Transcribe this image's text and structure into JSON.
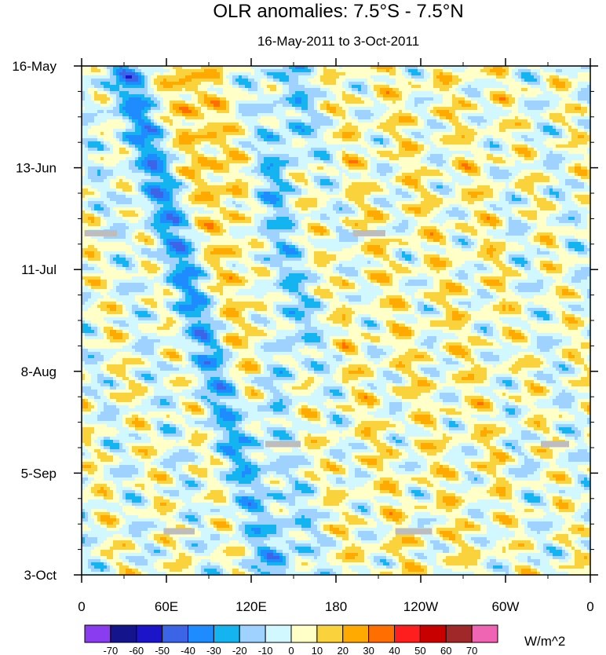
{
  "chart_data": {
    "type": "heatmap",
    "title": "OLR anomalies: 7.5°S - 7.5°N",
    "subtitle": "16-May-2011 to 3-Oct-2011",
    "xlabel": "",
    "ylabel": "",
    "x_range_deg_east": [
      0,
      360
    ],
    "x_ticks": [
      {
        "label": "0",
        "lon": 0
      },
      {
        "label": "60E",
        "lon": 60
      },
      {
        "label": "120E",
        "lon": 120
      },
      {
        "label": "180",
        "lon": 180
      },
      {
        "label": "120W",
        "lon": 240
      },
      {
        "label": "60W",
        "lon": 300
      },
      {
        "label": "0",
        "lon": 360
      }
    ],
    "time_range_days": [
      0,
      140
    ],
    "y_ticks": [
      {
        "label": "16-May",
        "day": 0
      },
      {
        "label": "13-Jun",
        "day": 28
      },
      {
        "label": "11-Jul",
        "day": 56
      },
      {
        "label": "8-Aug",
        "day": 84
      },
      {
        "label": "5-Sep",
        "day": 112
      },
      {
        "label": "3-Oct",
        "day": 140
      }
    ],
    "colorbar": {
      "units": "W/m^2",
      "levels": [
        -70,
        -60,
        -50,
        -40,
        -30,
        -20,
        -10,
        0,
        10,
        20,
        30,
        40,
        50,
        60,
        70
      ],
      "colors": [
        "#8a3cf0",
        "#14148c",
        "#1c14c8",
        "#3c64e6",
        "#1e8cff",
        "#14b4f0",
        "#a0d2ff",
        "#d2f8ff",
        "#ffffc8",
        "#fad23c",
        "#ffaa00",
        "#ff6e00",
        "#ff1e1e",
        "#c80000",
        "#a02828",
        "#f064b4"
      ]
    },
    "features": [
      {
        "name": "eastward-propagating convective (negative) band",
        "lon_start": 20,
        "lon_end": 160,
        "day_start": 0,
        "day_end": 140
      },
      {
        "name": "suppressed (positive) band over Indian Ocean / Maritime Continent",
        "lon_start": 60,
        "lon_end": 170,
        "day_start": 10,
        "day_end": 130
      },
      {
        "name": "neutral-to-positive anomalies east of dateline",
        "lon_start": 180,
        "lon_end": 300,
        "day_start": 0,
        "day_end": 140
      }
    ],
    "missing_data_segments": [
      {
        "lon": [
          2,
          25
        ],
        "day": 46
      },
      {
        "lon": [
          192,
          215
        ],
        "day": 46
      },
      {
        "lon": [
          130,
          155
        ],
        "day": 104
      },
      {
        "lon": [
          58,
          80
        ],
        "day": 128
      },
      {
        "lon": [
          222,
          248
        ],
        "day": 128
      },
      {
        "lon": [
          325,
          345
        ],
        "day": 104
      }
    ]
  }
}
